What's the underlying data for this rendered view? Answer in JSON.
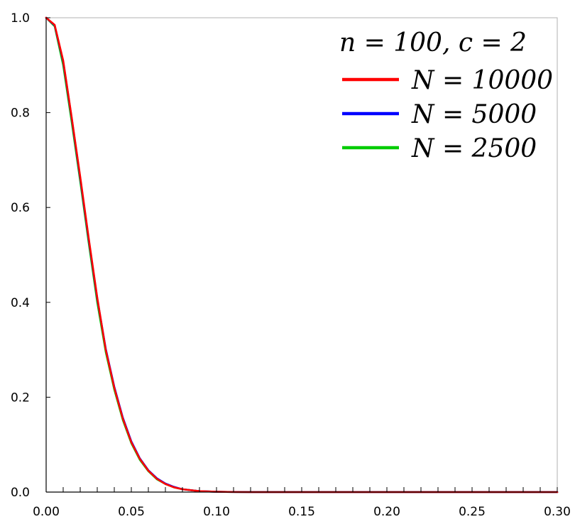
{
  "chart_data": {
    "type": "line",
    "title": "",
    "xlabel": "",
    "ylabel": "",
    "xlim": [
      0.0,
      0.3
    ],
    "ylim": [
      0.0,
      1.0
    ],
    "grid": false,
    "legend_position": "top-right",
    "legend_title": "n = 100,  c = 2",
    "x_ticks": [
      0.0,
      0.05,
      0.1,
      0.15,
      0.2,
      0.25,
      0.3
    ],
    "x_tick_labels": [
      "0.00",
      "0.05",
      "0.10",
      "0.15",
      "0.20",
      "0.25",
      "0.30"
    ],
    "y_ticks": [
      0.0,
      0.2,
      0.4,
      0.6,
      0.8,
      1.0
    ],
    "y_tick_labels": [
      "0.0",
      "0.2",
      "0.4",
      "0.6",
      "0.8",
      "1.0"
    ],
    "series": [
      {
        "name": "N = 10000",
        "color": "#ff0000",
        "x": [
          0.0,
          0.005,
          0.01,
          0.015,
          0.02,
          0.025,
          0.03,
          0.035,
          0.04,
          0.045,
          0.05,
          0.055,
          0.06,
          0.065,
          0.07,
          0.075,
          0.08,
          0.09,
          0.1,
          0.11,
          0.12,
          0.15,
          0.2,
          0.25,
          0.3
        ],
        "y": [
          1.0,
          0.985,
          0.91,
          0.79,
          0.665,
          0.535,
          0.41,
          0.3,
          0.22,
          0.155,
          0.105,
          0.07,
          0.045,
          0.028,
          0.017,
          0.01,
          0.006,
          0.002,
          0.0007,
          0.0002,
          0.0,
          0.0,
          0.0,
          0.0,
          0.0
        ]
      },
      {
        "name": "N = 5000",
        "color": "#0000ff",
        "x": [
          0.0,
          0.005,
          0.01,
          0.015,
          0.02,
          0.025,
          0.03,
          0.035,
          0.04,
          0.045,
          0.05,
          0.055,
          0.06,
          0.065,
          0.07,
          0.075,
          0.08,
          0.09,
          0.1,
          0.11,
          0.12,
          0.15,
          0.2,
          0.25,
          0.3
        ],
        "y": [
          1.0,
          0.984,
          0.908,
          0.788,
          0.662,
          0.532,
          0.408,
          0.302,
          0.222,
          0.157,
          0.107,
          0.071,
          0.046,
          0.029,
          0.018,
          0.011,
          0.006,
          0.002,
          0.0007,
          0.0002,
          0.0,
          0.0,
          0.0,
          0.0,
          0.0
        ]
      },
      {
        "name": "N = 2500",
        "color": "#00cc00",
        "x": [
          0.0,
          0.005,
          0.01,
          0.015,
          0.02,
          0.025,
          0.03,
          0.035,
          0.04,
          0.045,
          0.05,
          0.055,
          0.06,
          0.065,
          0.07,
          0.075,
          0.08,
          0.09,
          0.1,
          0.11,
          0.12,
          0.15,
          0.2,
          0.25,
          0.3
        ],
        "y": [
          1.0,
          0.982,
          0.9,
          0.78,
          0.655,
          0.525,
          0.4,
          0.295,
          0.216,
          0.152,
          0.103,
          0.068,
          0.044,
          0.027,
          0.017,
          0.01,
          0.006,
          0.002,
          0.0007,
          0.0002,
          0.0,
          0.0,
          0.0,
          0.0,
          0.0
        ]
      }
    ]
  }
}
